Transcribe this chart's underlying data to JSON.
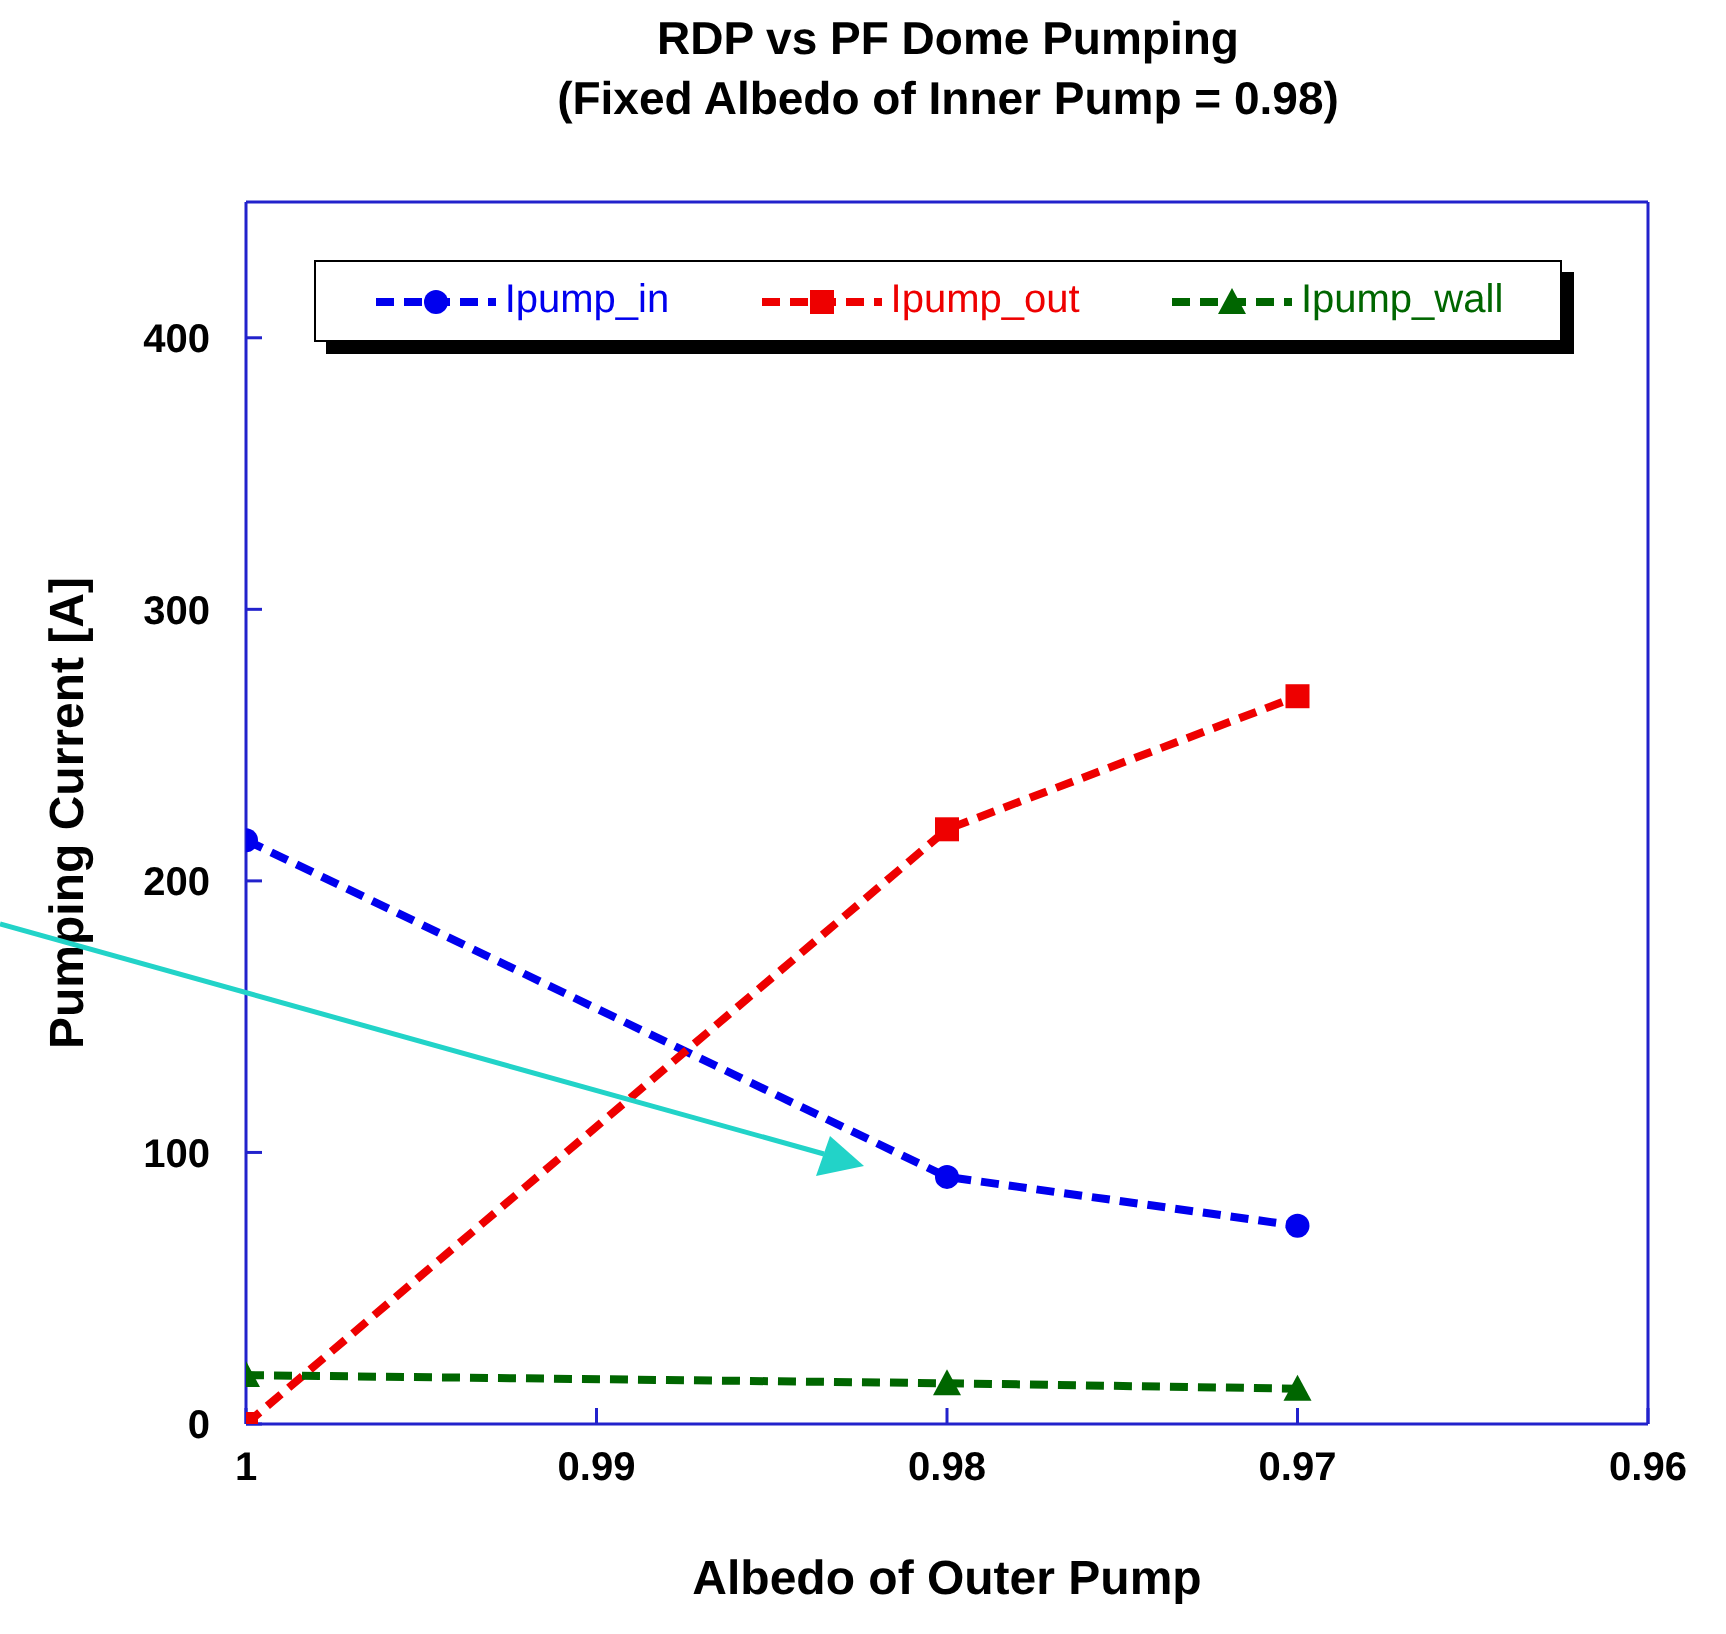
{
  "chart_data": {
    "type": "line",
    "title": "RDP vs PF Dome Pumping",
    "subtitle": "(Fixed Albedo of Inner Pump = 0.98)",
    "xlabel": "Albedo of Outer Pump",
    "ylabel": "Pumping Current [A]",
    "x": [
      1,
      0.98,
      0.97
    ],
    "series": [
      {
        "name": "Ipump_in",
        "color": "#0000ee",
        "values": [
          215,
          91,
          73
        ],
        "marker": "circle"
      },
      {
        "name": "Ipump_out",
        "color": "#ee0000",
        "values": [
          0,
          219,
          268
        ],
        "marker": "square"
      },
      {
        "name": "Ipump_wall",
        "color": "#006600",
        "values": [
          18,
          15,
          13
        ],
        "marker": "triangle"
      }
    ],
    "xlim": [
      1,
      0.96
    ],
    "xticks": [
      1,
      0.99,
      0.98,
      0.97,
      0.96
    ],
    "ylim": [
      0,
      450
    ],
    "yticks": [
      0,
      100,
      200,
      300,
      400
    ],
    "legend": "top",
    "line_style": "dashed"
  }
}
